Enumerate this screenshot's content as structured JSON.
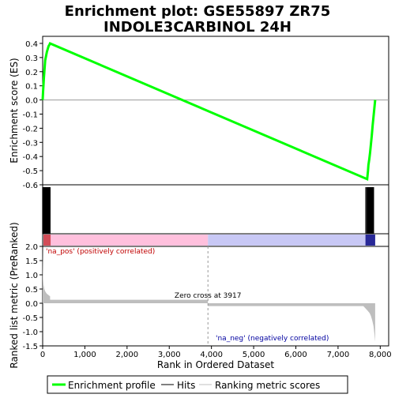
{
  "chart_data": {
    "type": "line",
    "title_line1": "Enrichment plot: GSE55897 ZR75",
    "title_line2": "INDOLE3CARBINOL 24H",
    "es_panel": {
      "ylabel": "Enrichment score (ES)",
      "ylim": [
        -0.6,
        0.45
      ],
      "yticks": [
        "0.4",
        "0.3",
        "0.2",
        "0.1",
        "0.0",
        "-0.1",
        "-0.2",
        "-0.3",
        "-0.4",
        "-0.5",
        "-0.6"
      ],
      "ytick_values": [
        0.4,
        0.3,
        0.2,
        0.1,
        0.0,
        -0.1,
        -0.2,
        -0.3,
        -0.4,
        -0.5,
        -0.6
      ],
      "series": [
        {
          "x": [
            0,
            10,
            20,
            30,
            40,
            50,
            60,
            80,
            100,
            120,
            140,
            160,
            175,
            7690,
            7700,
            7710,
            7720,
            7740,
            7760,
            7780,
            7800,
            7820,
            7840,
            7860,
            7880
          ],
          "y": [
            0.0,
            0.06,
            0.11,
            0.16,
            0.2,
            0.24,
            0.28,
            0.31,
            0.34,
            0.36,
            0.38,
            0.39,
            0.4,
            -0.56,
            -0.53,
            -0.5,
            -0.46,
            -0.42,
            -0.37,
            -0.31,
            -0.25,
            -0.18,
            -0.12,
            -0.06,
            0.0
          ]
        }
      ]
    },
    "hits_panel": {
      "hit_ranks": [
        2,
        5,
        8,
        11,
        14,
        17,
        20,
        23,
        26,
        29,
        32,
        35,
        38,
        41,
        44,
        47,
        50,
        53,
        56,
        59,
        62,
        65,
        68,
        71,
        74,
        77,
        80,
        83,
        86,
        89,
        92,
        95,
        98,
        101,
        104,
        107,
        110,
        113,
        116,
        119,
        122,
        125,
        128,
        131,
        134,
        137,
        140,
        143,
        146,
        149,
        152,
        155,
        158,
        161,
        164,
        167,
        170,
        173,
        7660,
        7690,
        7700,
        7710,
        7720,
        7730,
        7740,
        7750,
        7760,
        7770,
        7780,
        7790,
        7800,
        7810,
        7820,
        7830,
        7840
      ]
    },
    "metric_panel": {
      "ylabel": "Ranked list metric (PreRanked)",
      "xlabel": "Rank in Ordered Dataset",
      "ylim": [
        -1.5,
        2.0
      ],
      "yticks": [
        "2.0",
        "1.5",
        "1.0",
        "0.5",
        "0.0",
        "-0.5",
        "-1.0",
        "-1.5"
      ],
      "ytick_values": [
        2.0,
        1.5,
        1.0,
        0.5,
        0.0,
        -0.5,
        -1.0,
        -1.5
      ],
      "xlim": [
        0,
        8200
      ],
      "xticks": [
        "0",
        "1,000",
        "2,000",
        "3,000",
        "4,000",
        "5,000",
        "6,000",
        "7,000",
        "8,000"
      ],
      "xtick_values": [
        0,
        1000,
        2000,
        3000,
        4000,
        5000,
        6000,
        7000,
        8000
      ],
      "profile_x": [
        0,
        10,
        20,
        40,
        60,
        80,
        100,
        130,
        160,
        175,
        176,
        3916,
        3917,
        3918,
        7600,
        7650,
        7700,
        7750,
        7780,
        7810,
        7840,
        7860,
        7880
      ],
      "profile_y": [
        2.0,
        0.85,
        0.65,
        0.5,
        0.42,
        0.37,
        0.33,
        0.3,
        0.26,
        0.25,
        0.12,
        0.12,
        0.0,
        -0.1,
        -0.1,
        -0.18,
        -0.26,
        -0.35,
        -0.45,
        -0.6,
        -0.8,
        -1.05,
        -1.35
      ],
      "zero_cross_label": "Zero cross at 3917",
      "zero_cross": 3917,
      "pos_label": "'na_pos' (positively correlated)",
      "neg_label": "'na_neg' (negatively correlated)"
    },
    "legend": [
      {
        "name": "Enrichment profile",
        "color": "#00ff00"
      },
      {
        "name": "Hits",
        "color": "#000000"
      },
      {
        "name": "Ranking metric scores",
        "color": "#c0c0c0"
      }
    ],
    "colors": {
      "es_line": "#00ff00",
      "hits": "#000000",
      "metric_fill": "#bebebe",
      "pos_band": "#ffc0dd",
      "neg_band": "#c8c8f5",
      "pos_text": "#c00000",
      "neg_text": "#0000a0",
      "panel_bg": "#ffffff"
    }
  }
}
